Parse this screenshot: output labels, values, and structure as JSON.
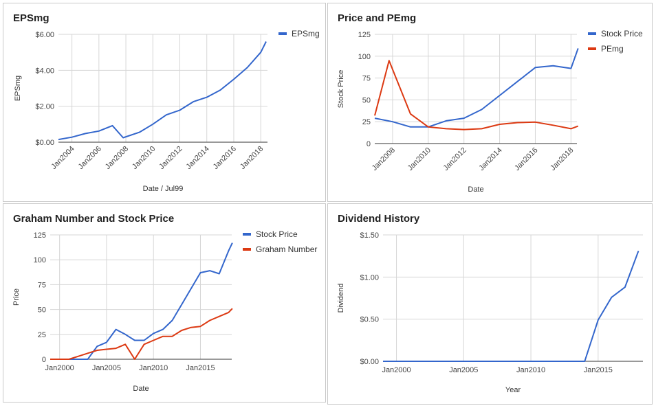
{
  "colors": {
    "blue": "#3366cc",
    "red": "#dc3912"
  },
  "chart_data": [
    {
      "type": "line",
      "title": "EPSmg",
      "xlabel": "Date / Jul99",
      "ylabel": "EPSmg",
      "xlim": [
        "2003-01",
        "2018-07"
      ],
      "ylim": [
        0,
        6
      ],
      "y_ticks": [
        0,
        2,
        4,
        6
      ],
      "y_tick_labels": [
        "$0.00",
        "$2.00",
        "$4.00",
        "$6.00"
      ],
      "x_ticks": [
        2004,
        2006,
        2008,
        2010,
        2012,
        2014,
        2016,
        2018
      ],
      "x_tick_labels": [
        "Jan2004",
        "Jan2006",
        "Jan2008",
        "Jan2010",
        "Jan2012",
        "Jan2014",
        "Jan2016",
        "Jan2018"
      ],
      "x_label_rotation": -45,
      "grid": true,
      "legend_position": "top-right",
      "series": [
        {
          "name": "EPSmg",
          "color": "#3366cc",
          "x": [
            2003.0,
            2004.0,
            2005.0,
            2006.0,
            2007.0,
            2007.8,
            2009.0,
            2010.0,
            2011.0,
            2012.0,
            2013.0,
            2014.0,
            2015.0,
            2016.0,
            2017.0,
            2018.0,
            2018.4
          ],
          "values": [
            0.15,
            0.28,
            0.48,
            0.62,
            0.92,
            0.25,
            0.55,
            1.0,
            1.52,
            1.78,
            2.25,
            2.5,
            2.9,
            3.5,
            4.15,
            5.0,
            5.6
          ]
        }
      ]
    },
    {
      "type": "line",
      "title": "Price and PEmg",
      "xlabel": "Date",
      "ylabel": "Stock Price",
      "xlim": [
        "2007-01",
        "2018-05"
      ],
      "ylim": [
        0,
        125
      ],
      "y_ticks": [
        0,
        25,
        50,
        75,
        100,
        125
      ],
      "y_tick_labels": [
        "0",
        "25",
        "50",
        "75",
        "100",
        "125"
      ],
      "x_ticks": [
        2008,
        2010,
        2012,
        2014,
        2016,
        2018
      ],
      "x_tick_labels": [
        "Jan2008",
        "Jan2010",
        "Jan2012",
        "Jan2014",
        "Jan2016",
        "Jan2018"
      ],
      "x_label_rotation": -45,
      "grid": true,
      "legend_position": "top-right",
      "series": [
        {
          "name": "Stock Price",
          "color": "#3366cc",
          "x": [
            2007.0,
            2008.0,
            2009.0,
            2010.0,
            2011.0,
            2012.0,
            2013.0,
            2014.0,
            2015.0,
            2016.0,
            2017.0,
            2018.0,
            2018.4
          ],
          "values": [
            29,
            25,
            19,
            19,
            26,
            29,
            39,
            55,
            71,
            87,
            89,
            86,
            109
          ]
        },
        {
          "name": "PEmg",
          "color": "#dc3912",
          "x": [
            2007.0,
            2007.8,
            2009.0,
            2010.0,
            2011.0,
            2012.0,
            2013.0,
            2014.0,
            2015.0,
            2016.0,
            2017.0,
            2018.0,
            2018.4
          ],
          "values": [
            32,
            95,
            34,
            19,
            17,
            16,
            17,
            22,
            24,
            24.5,
            21,
            17,
            20
          ]
        }
      ]
    },
    {
      "type": "line",
      "title": "Graham Number and Stock Price",
      "xlabel": "Date",
      "ylabel": "Price",
      "xlim": [
        "1999-01",
        "2018-05"
      ],
      "ylim": [
        0,
        125
      ],
      "y_ticks": [
        0,
        25,
        50,
        75,
        100,
        125
      ],
      "y_tick_labels": [
        "0",
        "25",
        "50",
        "75",
        "100",
        "125"
      ],
      "x_ticks": [
        2000,
        2005,
        2010,
        2015
      ],
      "x_tick_labels": [
        "Jan2000",
        "Jan2005",
        "Jan2010",
        "Jan2015"
      ],
      "x_label_rotation": 0,
      "grid": true,
      "legend_position": "top-right",
      "series": [
        {
          "name": "Stock Price",
          "color": "#3366cc",
          "x": [
            1999,
            2000,
            2001,
            2002,
            2003,
            2004,
            2005,
            2006,
            2007,
            2008,
            2009,
            2010,
            2011,
            2012,
            2013,
            2014,
            2015,
            2016,
            2017,
            2018,
            2018.4
          ],
          "values": [
            0,
            0,
            0,
            0,
            0,
            13,
            17,
            30,
            25,
            19,
            19,
            26,
            30,
            39,
            55,
            71,
            87,
            89,
            86,
            109,
            117
          ]
        },
        {
          "name": "Graham Number",
          "color": "#dc3912",
          "x": [
            1999,
            2000,
            2001,
            2002,
            2003,
            2004,
            2005,
            2006,
            2007,
            2008,
            2009,
            2010,
            2011,
            2012,
            2013,
            2014,
            2015,
            2016,
            2017,
            2018,
            2018.4
          ],
          "values": [
            0,
            0,
            0,
            3,
            6,
            9,
            10,
            11,
            15,
            0,
            15,
            19,
            23,
            23,
            29,
            32,
            33,
            39,
            43,
            47,
            51
          ]
        }
      ]
    },
    {
      "type": "line",
      "title": "Dividend History",
      "xlabel": "Year",
      "ylabel": "Dividend",
      "xlim": [
        "1999-01",
        "2018-05"
      ],
      "ylim": [
        0,
        1.5
      ],
      "y_ticks": [
        0,
        0.5,
        1.0,
        1.5
      ],
      "y_tick_labels": [
        "$0.00",
        "$0.50",
        "$1.00",
        "$1.50"
      ],
      "x_ticks": [
        2000,
        2005,
        2010,
        2015
      ],
      "x_tick_labels": [
        "Jan2000",
        "Jan2005",
        "Jan2010",
        "Jan2015"
      ],
      "x_label_rotation": 0,
      "grid": true,
      "legend_position": "none",
      "series": [
        {
          "color": "#3366cc",
          "x": [
            1999,
            2000,
            2001,
            2002,
            2003,
            2004,
            2005,
            2006,
            2007,
            2008,
            2009,
            2010,
            2011,
            2012,
            2013,
            2014,
            2015,
            2016,
            2017,
            2018.0
          ],
          "values": [
            0,
            0,
            0,
            0,
            0,
            0,
            0,
            0,
            0,
            0,
            0,
            0,
            0,
            0,
            0,
            0,
            0.49,
            0.76,
            0.88,
            1.31
          ]
        }
      ]
    }
  ]
}
